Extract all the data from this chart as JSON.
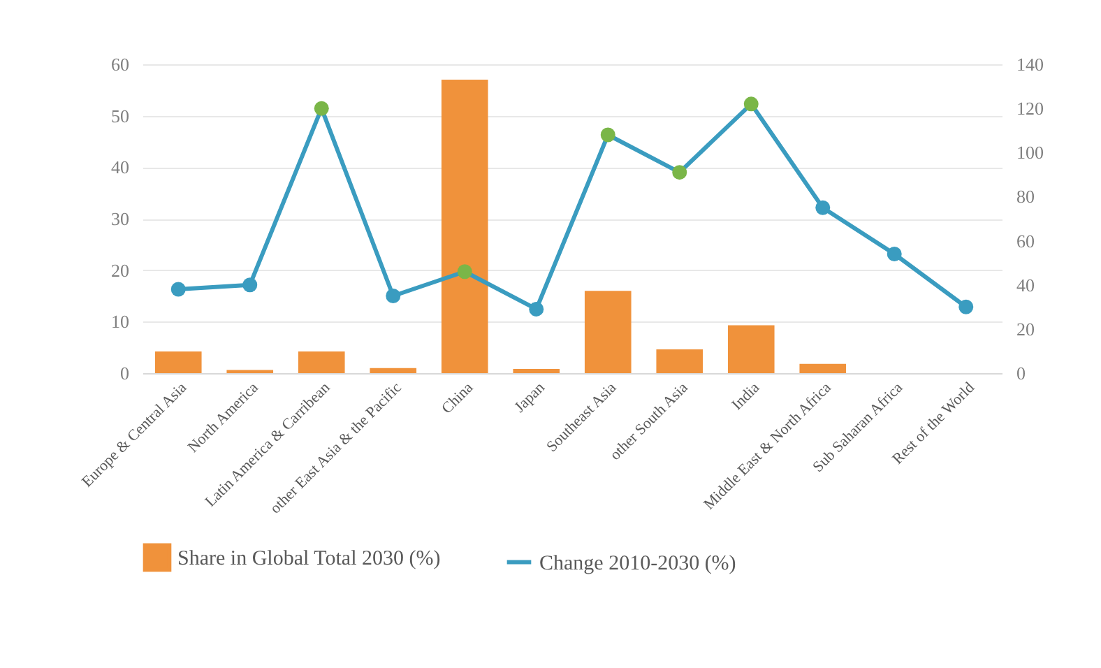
{
  "chart_data": {
    "type": "bar",
    "categories": [
      "Europe & Central Asia",
      "North America",
      "Latin America & Carribean",
      "other East Asia & the Pacific",
      "China",
      "Japan",
      "Southeast Asia",
      "other South Asia",
      "India",
      "Middle East & North Africa",
      "Sub Saharan Africa",
      "Rest of the World"
    ],
    "series": [
      {
        "name": "Share in Global Total 2030 (%)",
        "color": "#f0923b",
        "values": [
          4.2,
          0.6,
          4.2,
          1.0,
          57,
          0.8,
          16,
          4.6,
          9.3,
          1.8,
          0,
          0
        ]
      },
      {
        "name": "Change 2010-2030 (%)",
        "type": "line",
        "axis": "y2",
        "color": "#3a9cc0",
        "colors": [
          "#3a9cc0",
          "#3a9cc0",
          "#7ab648",
          "#3a9cc0",
          "#7ab648",
          "#3a9cc0",
          "#7ab648",
          "#7ab648",
          "#7ab648",
          "#3a9cc0",
          "#3a9cc0",
          "#3a9cc0"
        ],
        "values": [
          38,
          40,
          120,
          35,
          46,
          29,
          108,
          91,
          122,
          75,
          54,
          30
        ]
      }
    ],
    "ylim": [
      0,
      60
    ],
    "yticks": [
      0,
      10,
      20,
      30,
      40,
      50,
      60
    ],
    "y2lim": [
      0,
      140
    ],
    "y2ticks": [
      0,
      20,
      40,
      60,
      80,
      100,
      120,
      140
    ],
    "grid": "y",
    "legend": "bottom",
    "marker": "circle",
    "line_style": "solid"
  }
}
